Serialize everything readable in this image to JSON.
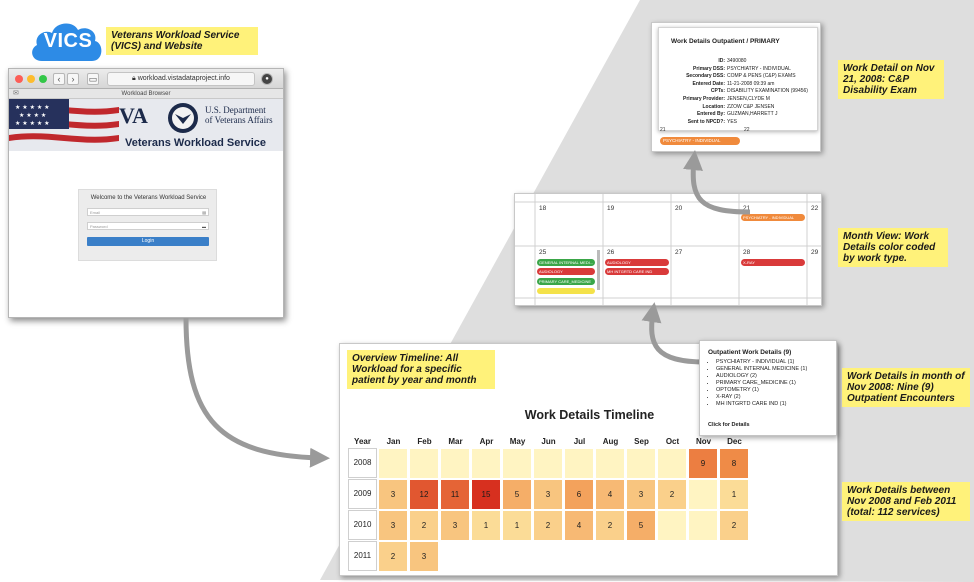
{
  "logo": {
    "text": "VICS"
  },
  "notes": {
    "vics": "Veterans Workload Service (VICS) and Website",
    "detail": "Work Detail on Nov 21, 2008: C&P Disability Exam",
    "month": "Month View: Work Details color coded by work type.",
    "month_count": "Work Details in month of Nov 2008: Nine (9) Outpatient Encounters",
    "overview": "Overview Timeline: All Workload for a specific patient by year and month",
    "between": "Work Details between Nov 2008 and Feb 2011 (total: 112 services)"
  },
  "browser": {
    "url": "workload.vistadataproject.info",
    "tab_title": "Workload Browser",
    "va_mark": "VA",
    "va_dept_line1": "U.S. Department",
    "va_dept_line2": "of Veterans Affairs",
    "service_title": "Veterans Workload Service",
    "welcome": "Welcome to the Veterans Workload Service",
    "email_placeholder": "Email",
    "password_placeholder": "Password",
    "login_label": "Login"
  },
  "detail_popup": {
    "title": "Work Details Outpatient / PRIMARY",
    "fields": [
      {
        "k": "ID:",
        "v": "3490080"
      },
      {
        "k": "Primary DSS:",
        "v": "PSYCHIATRY - INDIVIDUAL"
      },
      {
        "k": "Secondary DSS:",
        "v": "COMP & PENS (C&P) EXAMS"
      },
      {
        "k": "Entered Date:",
        "v": "11-21-2008 09:39 am"
      },
      {
        "k": "CPTs:",
        "v": "DISABILITY EXAMINATION (99456)"
      },
      {
        "k": "Primary Provider:",
        "v": "JENSEN,CLYDE M"
      },
      {
        "k": "Location:",
        "v": "ZZOW C&P JENSEN"
      },
      {
        "k": "Entered By:",
        "v": "GUZMAN,HARRETT J"
      },
      {
        "k": "Sent to NPCD?:",
        "v": "YES"
      }
    ],
    "day_a": "21",
    "day_b": "22",
    "pill": "PSYCHIATRY - INDIVIDUAL"
  },
  "month_view": {
    "days_row1": [
      "18",
      "19",
      "20",
      "21",
      "22"
    ],
    "days_row2": [
      "25",
      "26",
      "27",
      "28",
      "29"
    ],
    "pills": [
      {
        "label": "PSYCHIATRY - INDIVIDUAL",
        "color": "#f08a3c"
      },
      {
        "label": "GENERAL INTERNAL MEDI...",
        "color": "#3aa648"
      },
      {
        "label": "AUDIOLOGY",
        "color": "#d93a3a"
      },
      {
        "label": "PRIMARY CARE_MEDICINE",
        "color": "#3aa648"
      },
      {
        "label": "AUDIOLOGY",
        "color": "#d93a3a"
      },
      {
        "label": "MH INTGRTD CARE IND",
        "color": "#d93a3a"
      },
      {
        "label": "X-RAY",
        "color": "#d93a3a"
      }
    ]
  },
  "tooltip": {
    "title": "Outpatient Work Details (9)",
    "items": [
      "PSYCHIATRY - INDIVIDUAL (1)",
      "GENERAL INTERNAL MEDICINE (1)",
      "AUDIOLOGY (2)",
      "PRIMARY CARE_MEDICINE (1)",
      "OPTOMETRY (1)",
      "X-RAY (2)",
      "MH INTGRTD CARE IND (1)"
    ],
    "footer": "Click for Details"
  },
  "chart_data": {
    "type": "heatmap",
    "title": "Work Details Timeline",
    "year_header": "Year",
    "months": [
      "Jan",
      "Feb",
      "Mar",
      "Apr",
      "May",
      "Jun",
      "Jul",
      "Aug",
      "Sep",
      "Oct",
      "Nov",
      "Dec"
    ],
    "years": [
      "2008",
      "2009",
      "2010",
      "2011"
    ],
    "values": [
      [
        null,
        null,
        null,
        null,
        null,
        null,
        null,
        null,
        null,
        null,
        9,
        8
      ],
      [
        3,
        12,
        11,
        15,
        5,
        3,
        6,
        4,
        3,
        2,
        null,
        1
      ],
      [
        3,
        2,
        3,
        1,
        1,
        2,
        4,
        2,
        5,
        null,
        null,
        2
      ],
      [
        2,
        3,
        null,
        null,
        null,
        null,
        null,
        null,
        null,
        null,
        null,
        null
      ]
    ],
    "active_range": [
      [
        "2008",
        1,
        12
      ],
      [
        "2009",
        1,
        12
      ],
      [
        "2010",
        1,
        12
      ],
      [
        "2011",
        1,
        2
      ]
    ],
    "colors": {
      "empty": "#fff4c2",
      "low": "#fde7a3",
      "high": "#d7301f"
    }
  }
}
